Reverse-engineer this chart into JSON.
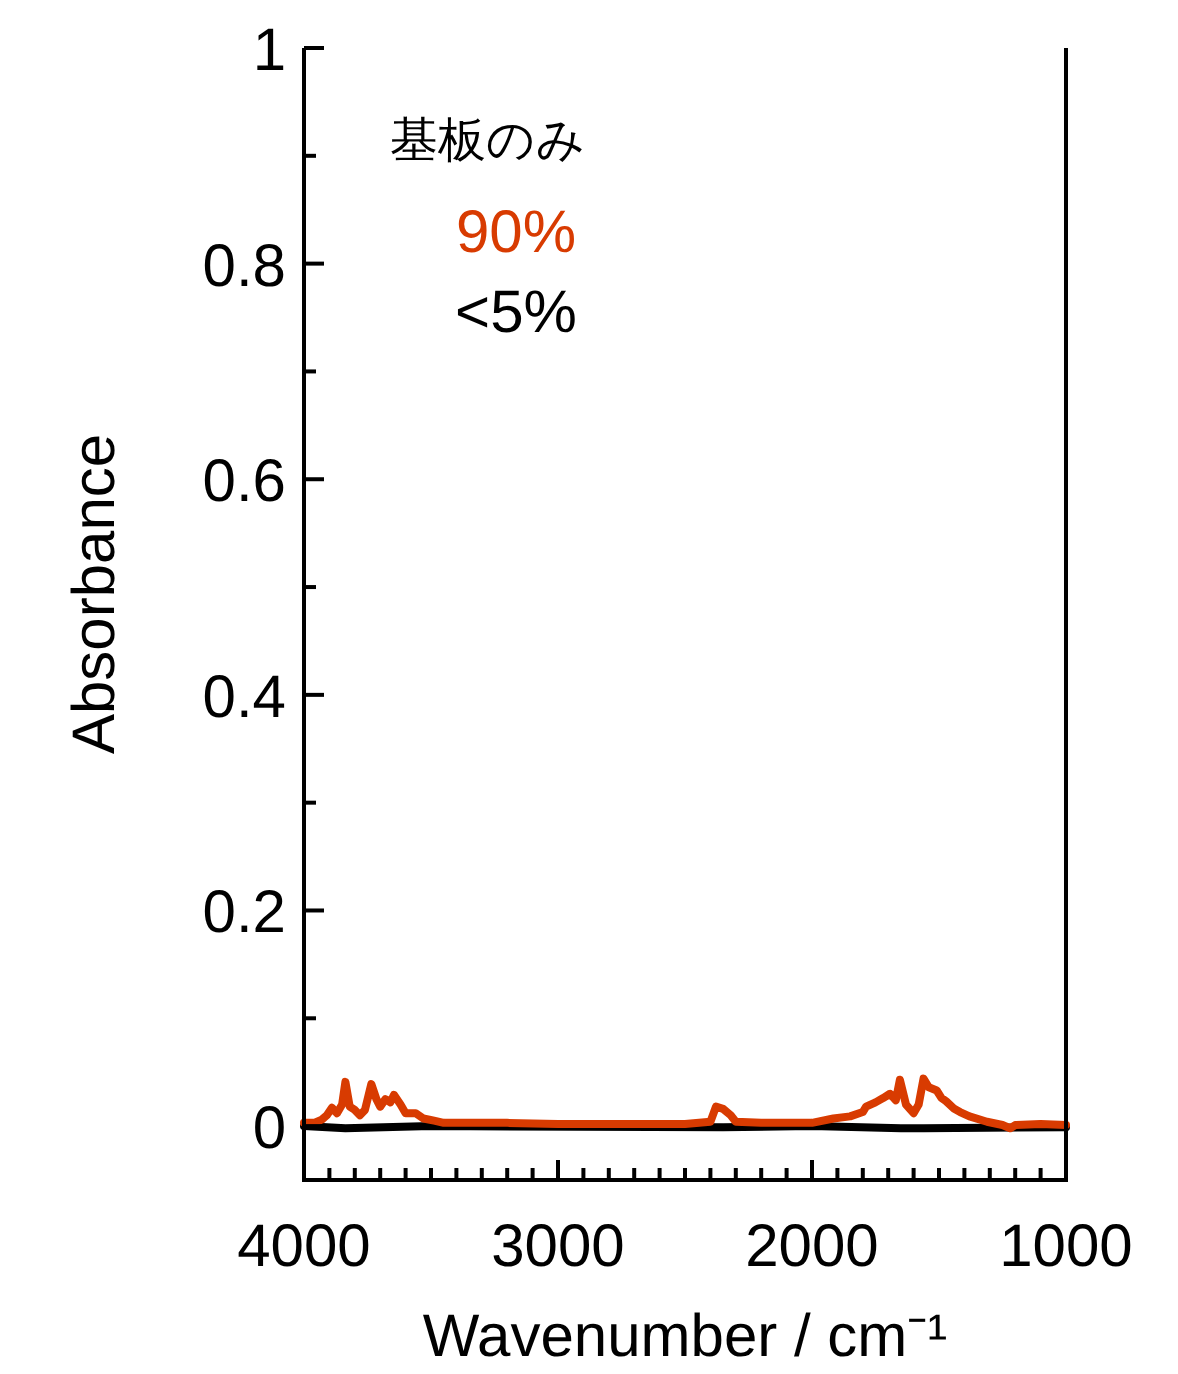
{
  "chart_data": {
    "type": "line",
    "xlabel": "Wavenumber / cm⁻¹",
    "ylabel": "Absorbance",
    "legend_title": "基板のみ",
    "legend": "top left",
    "grid": false,
    "xlim": [
      4000,
      1000
    ],
    "ylim": [
      -0.05,
      1
    ],
    "xticks": [
      4000,
      {
        "value": 3900,
        "label": null
      },
      {
        "value": 3800,
        "label": null
      },
      {
        "value": 3700,
        "label": null
      },
      {
        "value": 3600,
        "label": null
      },
      {
        "value": 3500,
        "label": null
      },
      {
        "value": 3400,
        "label": null
      },
      {
        "value": 3300,
        "label": null
      },
      {
        "value": 3200,
        "label": null
      },
      {
        "value": 3100,
        "label": null
      },
      3000,
      {
        "value": 2900,
        "label": null
      },
      {
        "value": 2800,
        "label": null
      },
      {
        "value": 2700,
        "label": null
      },
      {
        "value": 2600,
        "label": null
      },
      {
        "value": 2500,
        "label": null
      },
      {
        "value": 2400,
        "label": null
      },
      {
        "value": 2300,
        "label": null
      },
      {
        "value": 2200,
        "label": null
      },
      {
        "value": 2100,
        "label": null
      },
      2000,
      {
        "value": 1900,
        "label": null
      },
      {
        "value": 1800,
        "label": null
      },
      {
        "value": 1700,
        "label": null
      },
      {
        "value": 1600,
        "label": null
      },
      {
        "value": 1500,
        "label": null
      },
      {
        "value": 1400,
        "label": null
      },
      {
        "value": 1300,
        "label": null
      },
      {
        "value": 1200,
        "label": null
      },
      {
        "value": 1100,
        "label": null
      },
      1000
    ],
    "yticks": [
      0,
      {
        "value": 0.1,
        "label": null
      },
      0.2,
      {
        "value": 0.3,
        "label": null
      },
      0.4,
      {
        "value": 0.5,
        "label": null
      },
      0.6,
      {
        "value": 0.7,
        "label": null
      },
      0.8,
      {
        "value": 0.9,
        "label": null
      },
      1
    ],
    "series": [
      {
        "name": "<5%",
        "color": "#000000",
        "x": [
          4000,
          3837,
          3500,
          2350,
          2000,
          1650,
          1560,
          1000
        ],
        "values": [
          0,
          -0.002,
          0,
          -0.001,
          0,
          -0.002,
          -0.002,
          -0.001
        ]
      },
      {
        "name": "90%",
        "color": "#d83b01",
        "x": [
          4000,
          3960,
          3930,
          3910,
          3890,
          3870,
          3850,
          3837,
          3820,
          3800,
          3780,
          3760,
          3735,
          3715,
          3700,
          3680,
          3660,
          3646,
          3620,
          3600,
          3560,
          3530,
          3488,
          3450,
          3200,
          3000,
          2800,
          2500,
          2400,
          2378,
          2350,
          2320,
          2300,
          2200,
          2000,
          1916,
          1850,
          1800,
          1787,
          1750,
          1720,
          1693,
          1670,
          1654,
          1630,
          1600,
          1580,
          1561,
          1540,
          1509,
          1490,
          1472,
          1440,
          1417,
          1380,
          1311,
          1250,
          1220,
          1200,
          1100,
          1000
        ],
        "values": [
          0.003,
          0.003,
          0.006,
          0.01,
          0.017,
          0.012,
          0.02,
          0.041,
          0.018,
          0.015,
          0.01,
          0.015,
          0.039,
          0.025,
          0.018,
          0.025,
          0.022,
          0.029,
          0.02,
          0.012,
          0.012,
          0.007,
          0.005,
          0.003,
          0.003,
          0.002,
          0.002,
          0.002,
          0.004,
          0.018,
          0.016,
          0.01,
          0.004,
          0.003,
          0.003,
          0.007,
          0.009,
          0.013,
          0.018,
          0.022,
          0.026,
          0.03,
          0.024,
          0.043,
          0.02,
          0.012,
          0.02,
          0.044,
          0.036,
          0.033,
          0.026,
          0.023,
          0.016,
          0.013,
          0.009,
          0.004,
          0.001,
          -0.002,
          0.001,
          0.002,
          0.001
        ]
      }
    ]
  }
}
